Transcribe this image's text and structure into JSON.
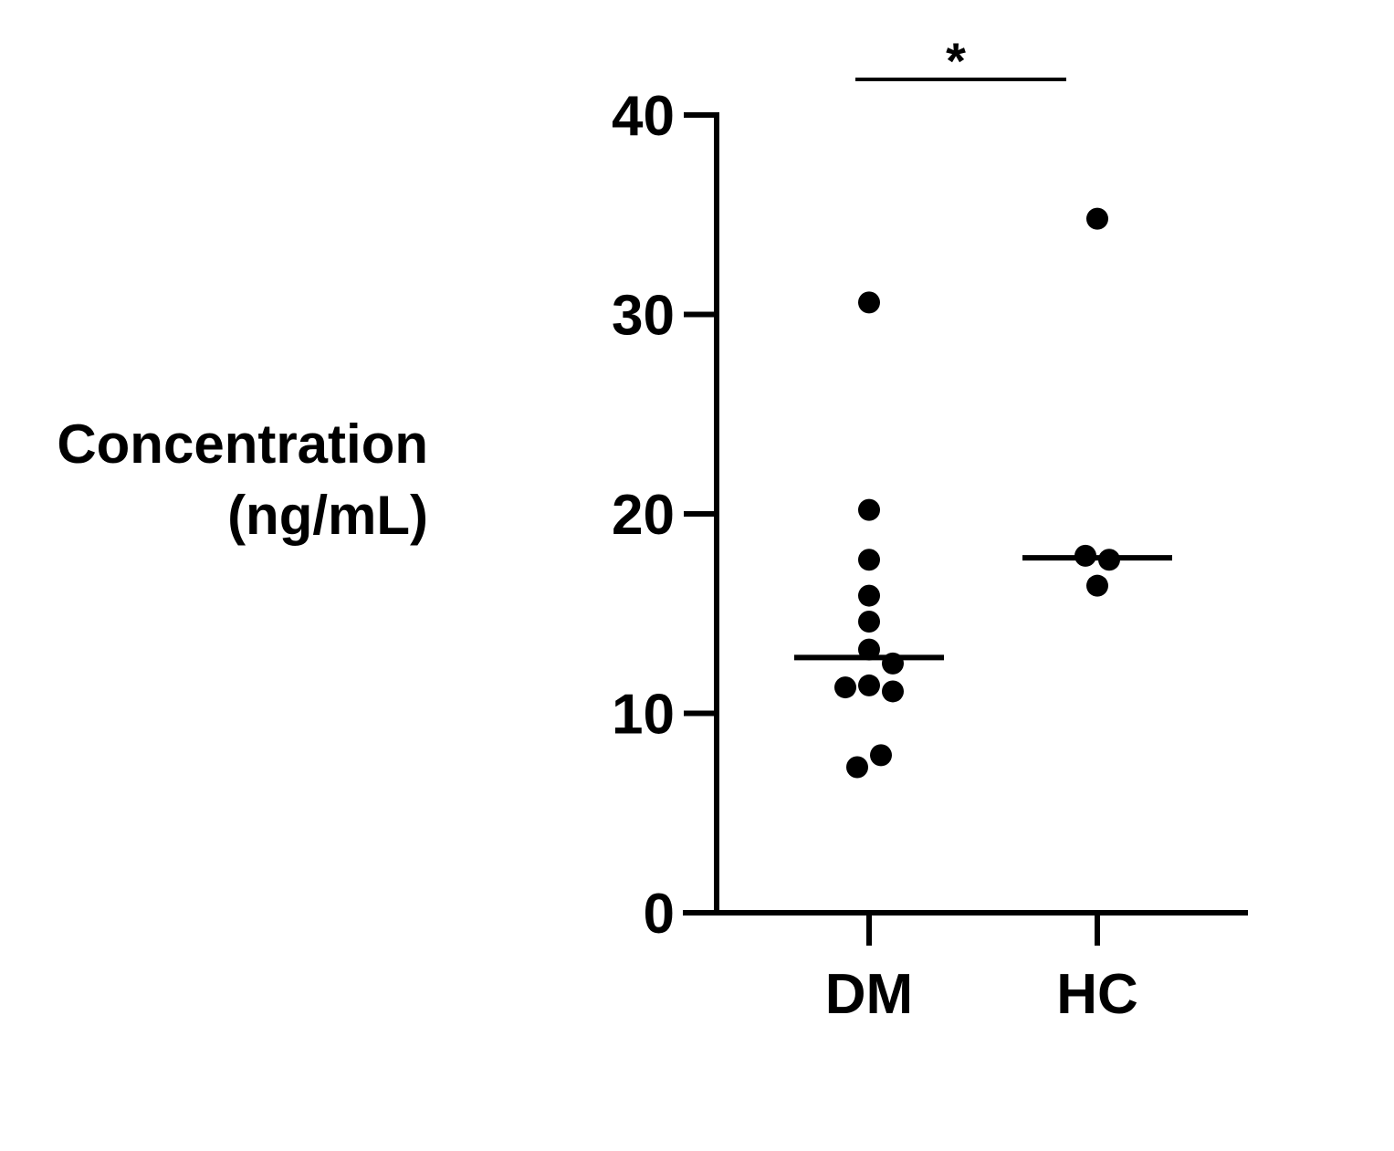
{
  "chart_data": {
    "type": "scatter",
    "title": "",
    "xlabel": "",
    "ylabel_lines": [
      "Concentration",
      "(ng/mL)"
    ],
    "categories": [
      "DM",
      "HC"
    ],
    "ylim": [
      0,
      40
    ],
    "yticks": [
      "0",
      "10",
      "20",
      "30",
      "40"
    ],
    "grid": false,
    "series": [
      {
        "category": "DM",
        "points": [
          {
            "offset": 0,
            "y": 30.6
          },
          {
            "offset": 0,
            "y": 20.2
          },
          {
            "offset": 0,
            "y": 17.7
          },
          {
            "offset": 0,
            "y": 15.9
          },
          {
            "offset": 0,
            "y": 14.6
          },
          {
            "offset": 0,
            "y": 13.2
          },
          {
            "offset": 1,
            "y": 12.5
          },
          {
            "offset": -1,
            "y": 11.3
          },
          {
            "offset": 0,
            "y": 11.4
          },
          {
            "offset": 1,
            "y": 11.1
          },
          {
            "offset": 0.5,
            "y": 7.9
          },
          {
            "offset": -0.5,
            "y": 7.3
          }
        ],
        "median": 12.8
      },
      {
        "category": "HC",
        "points": [
          {
            "offset": 0,
            "y": 34.8
          },
          {
            "offset": -0.5,
            "y": 17.9
          },
          {
            "offset": 0.5,
            "y": 17.7
          },
          {
            "offset": 0,
            "y": 16.4
          }
        ],
        "median": 17.8
      }
    ],
    "significance": {
      "between": [
        "DM",
        "HC"
      ],
      "label": "*"
    },
    "colors": {
      "marker": "#000000",
      "axis": "#000000"
    }
  }
}
